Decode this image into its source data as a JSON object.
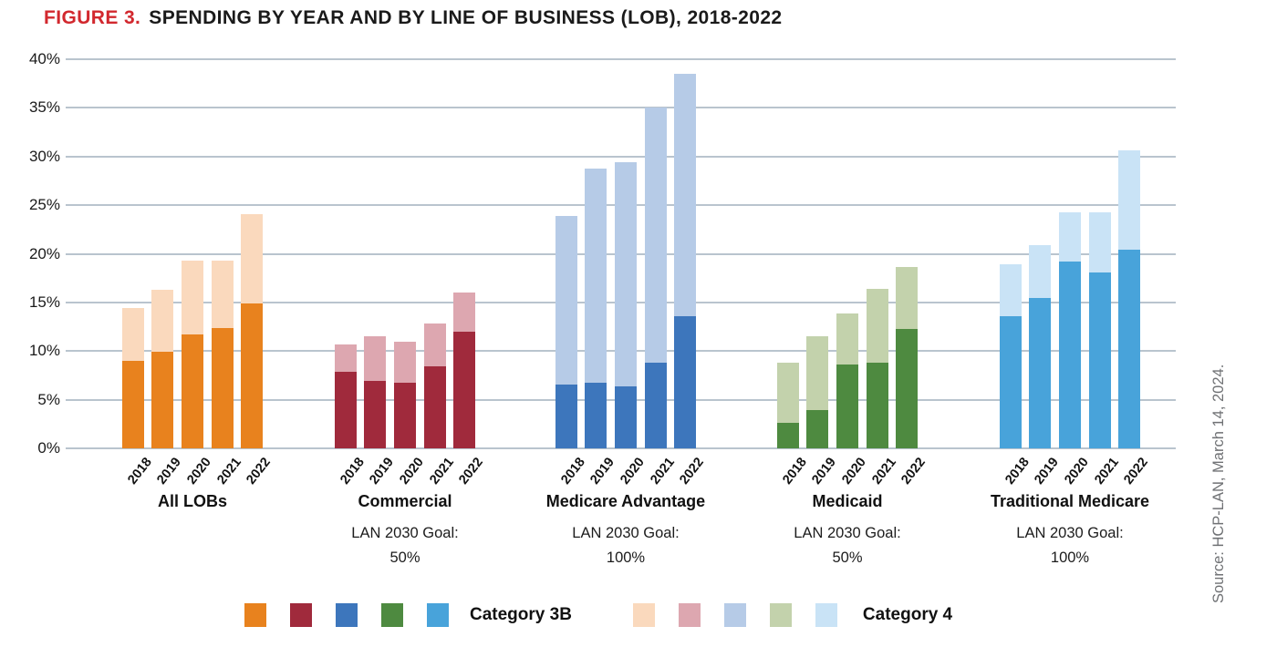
{
  "title": {
    "figure_label": "FIGURE 3.",
    "text": "SPENDING BY YEAR AND BY LINE OF BUSINESS (LOB), 2018-2022",
    "figure_label_color": "#d2282e"
  },
  "source_note": "Source: HCP-LAN, March 14, 2024.",
  "legend": {
    "category_3b_label": "Category 3B",
    "category_4_label": "Category 4",
    "category_3b_colors": [
      "#e8821e",
      "#a02a3c",
      "#3d76bc",
      "#4e8a40",
      "#48a3da"
    ],
    "category_4_colors": [
      "#fad9bd",
      "#dda7b0",
      "#b6cbe7",
      "#c3d2ac",
      "#c9e3f6"
    ]
  },
  "chart_data": {
    "type": "bar",
    "stacked": true,
    "unit": "percent",
    "title": "Spending by Year and by Line of Business (LOB), 2018-2022",
    "ylim": [
      0,
      40
    ],
    "y_tick_step": 5,
    "y_tick_labels": [
      "40%",
      "35%",
      "30%",
      "25%",
      "20%",
      "15%",
      "10%",
      "5%",
      "0%"
    ],
    "grid": true,
    "gridline_color": "#b9c4ce",
    "years": [
      "2018",
      "2019",
      "2020",
      "2021",
      "2022"
    ],
    "series_names": [
      "Category 3B",
      "Category 4"
    ],
    "groups": [
      {
        "name": "All LOBs",
        "goal_line1": "",
        "goal_line2": "",
        "colors": {
          "category_3b": "#e8821e",
          "category_4": "#fad9bd"
        },
        "category_3b": [
          9.0,
          9.9,
          11.7,
          12.4,
          14.9
        ],
        "category_4": [
          5.4,
          6.4,
          7.6,
          6.9,
          9.2
        ],
        "totals": [
          14.4,
          16.3,
          19.3,
          19.3,
          24.1
        ]
      },
      {
        "name": "Commercial",
        "goal_line1": "LAN 2030 Goal:",
        "goal_line2": "50%",
        "colors": {
          "category_3b": "#a02a3c",
          "category_4": "#dda7b0"
        },
        "category_3b": [
          7.9,
          6.9,
          6.7,
          8.4,
          12.0
        ],
        "category_4": [
          2.8,
          4.6,
          4.2,
          4.4,
          4.0
        ],
        "totals": [
          10.7,
          11.5,
          10.9,
          12.8,
          16.0
        ]
      },
      {
        "name": "Medicare Advantage",
        "goal_line1": "LAN 2030 Goal:",
        "goal_line2": "100%",
        "colors": {
          "category_3b": "#3d76bc",
          "category_4": "#b6cbe7"
        },
        "category_3b": [
          6.6,
          6.7,
          6.4,
          8.8,
          13.6
        ],
        "category_4": [
          17.3,
          22.0,
          23.0,
          26.2,
          24.9
        ],
        "totals": [
          23.9,
          28.7,
          29.4,
          35.0,
          38.5
        ]
      },
      {
        "name": "Medicaid",
        "goal_line1": "LAN 2030 Goal:",
        "goal_line2": "50%",
        "colors": {
          "category_3b": "#4e8a40",
          "category_4": "#c3d2ac"
        },
        "category_3b": [
          2.6,
          3.9,
          8.6,
          8.8,
          12.3
        ],
        "category_4": [
          6.2,
          7.6,
          5.2,
          7.6,
          6.4
        ],
        "totals": [
          8.8,
          11.5,
          13.8,
          16.4,
          18.7
        ]
      },
      {
        "name": "Traditional Medicare",
        "goal_line1": "LAN 2030 Goal:",
        "goal_line2": "100%",
        "colors": {
          "category_3b": "#48a3da",
          "category_4": "#c9e3f6"
        },
        "category_3b": [
          13.6,
          15.5,
          19.2,
          18.1,
          20.4
        ],
        "category_4": [
          5.3,
          5.4,
          5.1,
          6.2,
          10.2
        ],
        "totals": [
          18.9,
          20.9,
          24.3,
          24.3,
          30.6
        ]
      }
    ]
  }
}
